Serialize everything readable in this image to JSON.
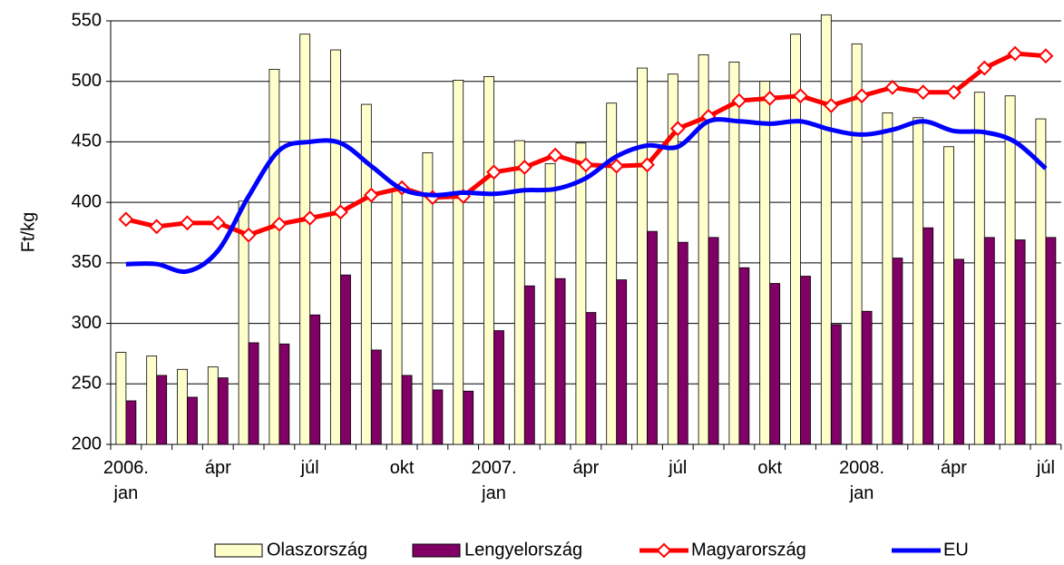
{
  "chart_data": {
    "type": "bar",
    "ylabel": "Ft/kg",
    "categories": [
      "2006.\njan",
      null,
      null,
      "ápr",
      null,
      null,
      "júl",
      null,
      null,
      "okt",
      null,
      null,
      "2007.\njan",
      null,
      null,
      "ápr",
      null,
      null,
      "júl",
      null,
      null,
      "okt",
      null,
      null,
      "2008.\njan",
      null,
      null,
      "ápr",
      null,
      null,
      "júl"
    ],
    "series": [
      {
        "name": "Olaszország",
        "type": "bar",
        "color": "#ffffcc",
        "values": [
          276,
          273,
          262,
          264,
          401,
          510,
          539,
          526,
          481,
          411,
          441,
          501,
          504,
          451,
          432,
          449,
          482,
          511,
          506,
          522,
          516,
          500,
          539,
          555,
          531,
          474,
          470,
          446,
          491,
          488,
          469
        ]
      },
      {
        "name": "Lengyelország",
        "type": "bar",
        "color": "#800066",
        "values": [
          236,
          257,
          239,
          255,
          284,
          283,
          307,
          340,
          278,
          257,
          245,
          244,
          294,
          331,
          337,
          309,
          336,
          376,
          367,
          371,
          346,
          333,
          339,
          299,
          310,
          354,
          379,
          353,
          371,
          369,
          371
        ]
      },
      {
        "name": "Magyarország",
        "type": "line",
        "marker": "diamond",
        "color": "#ff0000",
        "values": [
          386,
          380,
          383,
          383,
          373,
          382,
          387,
          392,
          406,
          412,
          404,
          405,
          425,
          429,
          439,
          431,
          430,
          431,
          461,
          471,
          484,
          486,
          488,
          480,
          488,
          495,
          491,
          491,
          511,
          523,
          521
        ]
      },
      {
        "name": "EU",
        "type": "line",
        "smooth": true,
        "color": "#0000ff",
        "values": [
          349,
          349,
          343,
          360,
          405,
          443,
          450,
          449,
          430,
          411,
          406,
          408,
          407,
          410,
          411,
          420,
          438,
          447,
          446,
          467,
          467,
          465,
          467,
          460,
          456,
          460,
          467,
          459,
          458,
          450,
          428
        ]
      }
    ],
    "ylim": [
      200,
      550
    ],
    "yticks": [
      200,
      250,
      300,
      350,
      400,
      450,
      500,
      550
    ],
    "grid": true,
    "legend": "bottom"
  }
}
